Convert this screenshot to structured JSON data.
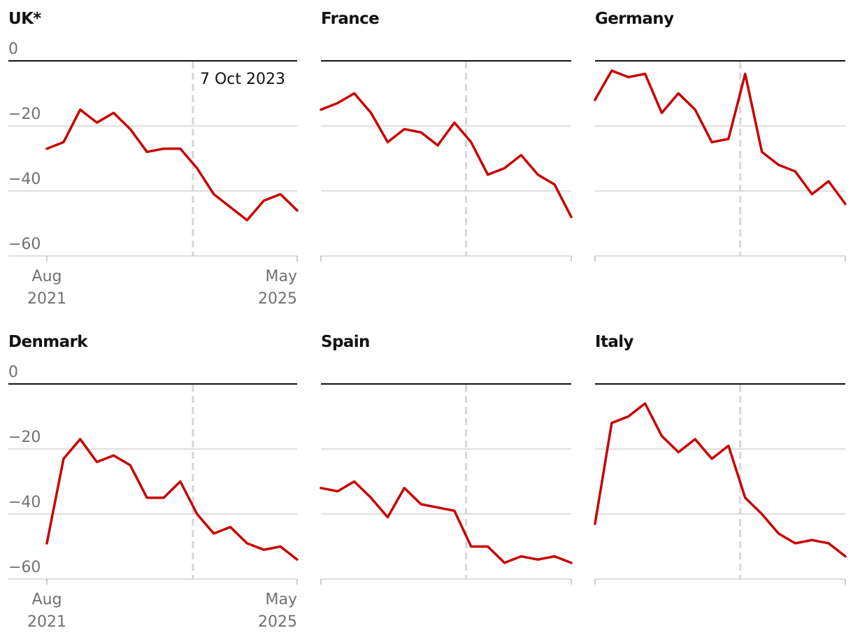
{
  "colors": {
    "line": "#c70000",
    "annotation": "#121212",
    "zero_line": "#121212",
    "grid": "#bdbdbd",
    "event_line": "#d6d6d6",
    "tick_text": "#707070"
  },
  "chart_data": [
    {
      "type": "line",
      "title": "UK*",
      "ylim": [
        -60,
        0
      ],
      "yticks": [
        "0",
        "−20",
        "−40",
        "−60"
      ],
      "xticks": [
        "Aug\n2021",
        "May\n2025"
      ],
      "show_y_labels": true,
      "show_x_labels": true,
      "event_label": "7 Oct 2023",
      "x": [
        "Aug 2021",
        "Nov 2021",
        "Feb 2022",
        "May 2022",
        "Aug 2022",
        "Nov 2022",
        "Feb 2023",
        "May 2023",
        "Aug 2023",
        "Oct 2023",
        "Jan 2024",
        "Apr 2024",
        "Jul 2024",
        "Oct 2024",
        "Jan 2025",
        "May 2025"
      ],
      "values": [
        -27,
        -25,
        -15,
        -19,
        -16,
        -21,
        -28,
        -27,
        -27,
        -33,
        -41,
        -45,
        -49,
        -43,
        -41,
        -46
      ]
    },
    {
      "type": "line",
      "title": "France",
      "ylim": [
        -60,
        0
      ],
      "show_y_labels": false,
      "show_x_labels": false,
      "x": [
        "Aug 2021",
        "Nov 2021",
        "Feb 2022",
        "May 2022",
        "Aug 2022",
        "Nov 2022",
        "Feb 2023",
        "May 2023",
        "Aug 2023",
        "Oct 2023",
        "Jan 2024",
        "Apr 2024",
        "Jul 2024",
        "Oct 2024",
        "Jan 2025",
        "May 2025"
      ],
      "values": [
        -15,
        -13,
        -10,
        -16,
        -25,
        -21,
        -22,
        -26,
        -19,
        -25,
        -35,
        -33,
        -29,
        -35,
        -38,
        -48
      ]
    },
    {
      "type": "line",
      "title": "Germany",
      "ylim": [
        -60,
        0
      ],
      "show_y_labels": false,
      "show_x_labels": false,
      "x": [
        "Aug 2021",
        "Nov 2021",
        "Feb 2022",
        "May 2022",
        "Aug 2022",
        "Nov 2022",
        "Feb 2023",
        "May 2023",
        "Aug 2023",
        "Oct 2023",
        "Jan 2024",
        "Apr 2024",
        "Jul 2024",
        "Oct 2024",
        "Jan 2025",
        "May 2025"
      ],
      "values": [
        -12,
        -3,
        -5,
        -4,
        -16,
        -10,
        -15,
        -25,
        -24,
        -4,
        -28,
        -32,
        -34,
        -41,
        -37,
        -44
      ]
    },
    {
      "type": "line",
      "title": "Denmark",
      "ylim": [
        -60,
        0
      ],
      "yticks": [
        "0",
        "−20",
        "−40",
        "−60"
      ],
      "xticks": [
        "Aug\n2021",
        "May\n2025"
      ],
      "show_y_labels": true,
      "show_x_labels": true,
      "x": [
        "Aug 2021",
        "Nov 2021",
        "Feb 2022",
        "May 2022",
        "Aug 2022",
        "Nov 2022",
        "Feb 2023",
        "May 2023",
        "Aug 2023",
        "Oct 2023",
        "Jan 2024",
        "Apr 2024",
        "Jul 2024",
        "Oct 2024",
        "Jan 2025",
        "May 2025"
      ],
      "values": [
        -49,
        -23,
        -17,
        -24,
        -22,
        -25,
        -35,
        -35,
        -30,
        -40,
        -46,
        -44,
        -49,
        -51,
        -50,
        -54
      ]
    },
    {
      "type": "line",
      "title": "Spain",
      "ylim": [
        -60,
        0
      ],
      "show_y_labels": false,
      "show_x_labels": false,
      "x": [
        "Aug 2021",
        "Nov 2021",
        "Feb 2022",
        "May 2022",
        "Aug 2022",
        "Nov 2022",
        "Feb 2023",
        "May 2023",
        "Aug 2023",
        "Oct 2023",
        "Jan 2024",
        "Apr 2024",
        "Jul 2024",
        "Oct 2024",
        "Jan 2025",
        "May 2025"
      ],
      "values": [
        -32,
        -33,
        -30,
        -35,
        -41,
        -32,
        -37,
        -38,
        -39,
        -50,
        -50,
        -55,
        -53,
        -54,
        -53,
        -55
      ]
    },
    {
      "type": "line",
      "title": "Italy",
      "ylim": [
        -60,
        0
      ],
      "show_y_labels": false,
      "show_x_labels": false,
      "x": [
        "Aug 2021",
        "Nov 2021",
        "Feb 2022",
        "May 2022",
        "Aug 2022",
        "Nov 2022",
        "Feb 2023",
        "May 2023",
        "Aug 2023",
        "Oct 2023",
        "Jan 2024",
        "Apr 2024",
        "Jul 2024",
        "Oct 2024",
        "Jan 2025",
        "May 2025"
      ],
      "values": [
        -43,
        -12,
        -10,
        -6,
        -16,
        -21,
        -17,
        -23,
        -19,
        -35,
        -40,
        -46,
        -49,
        -48,
        -49,
        -53
      ]
    }
  ]
}
